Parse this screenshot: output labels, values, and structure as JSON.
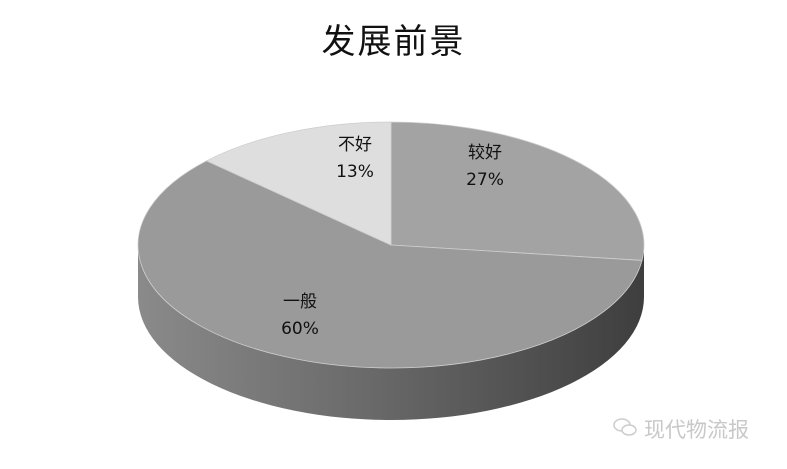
{
  "chart_data": {
    "type": "pie",
    "style": "3d",
    "title": "发展前景",
    "categories": [
      "较好",
      "一般",
      "不好"
    ],
    "values": [
      27,
      60,
      13
    ],
    "labels": [
      "27%",
      "60%",
      "13%"
    ],
    "colors": [
      "#a3a3a3",
      "#9a9a9a",
      "#dedede"
    ],
    "start_angle": "12 o'clock, clockwise",
    "legend": "none"
  },
  "watermark": "现代物流报"
}
